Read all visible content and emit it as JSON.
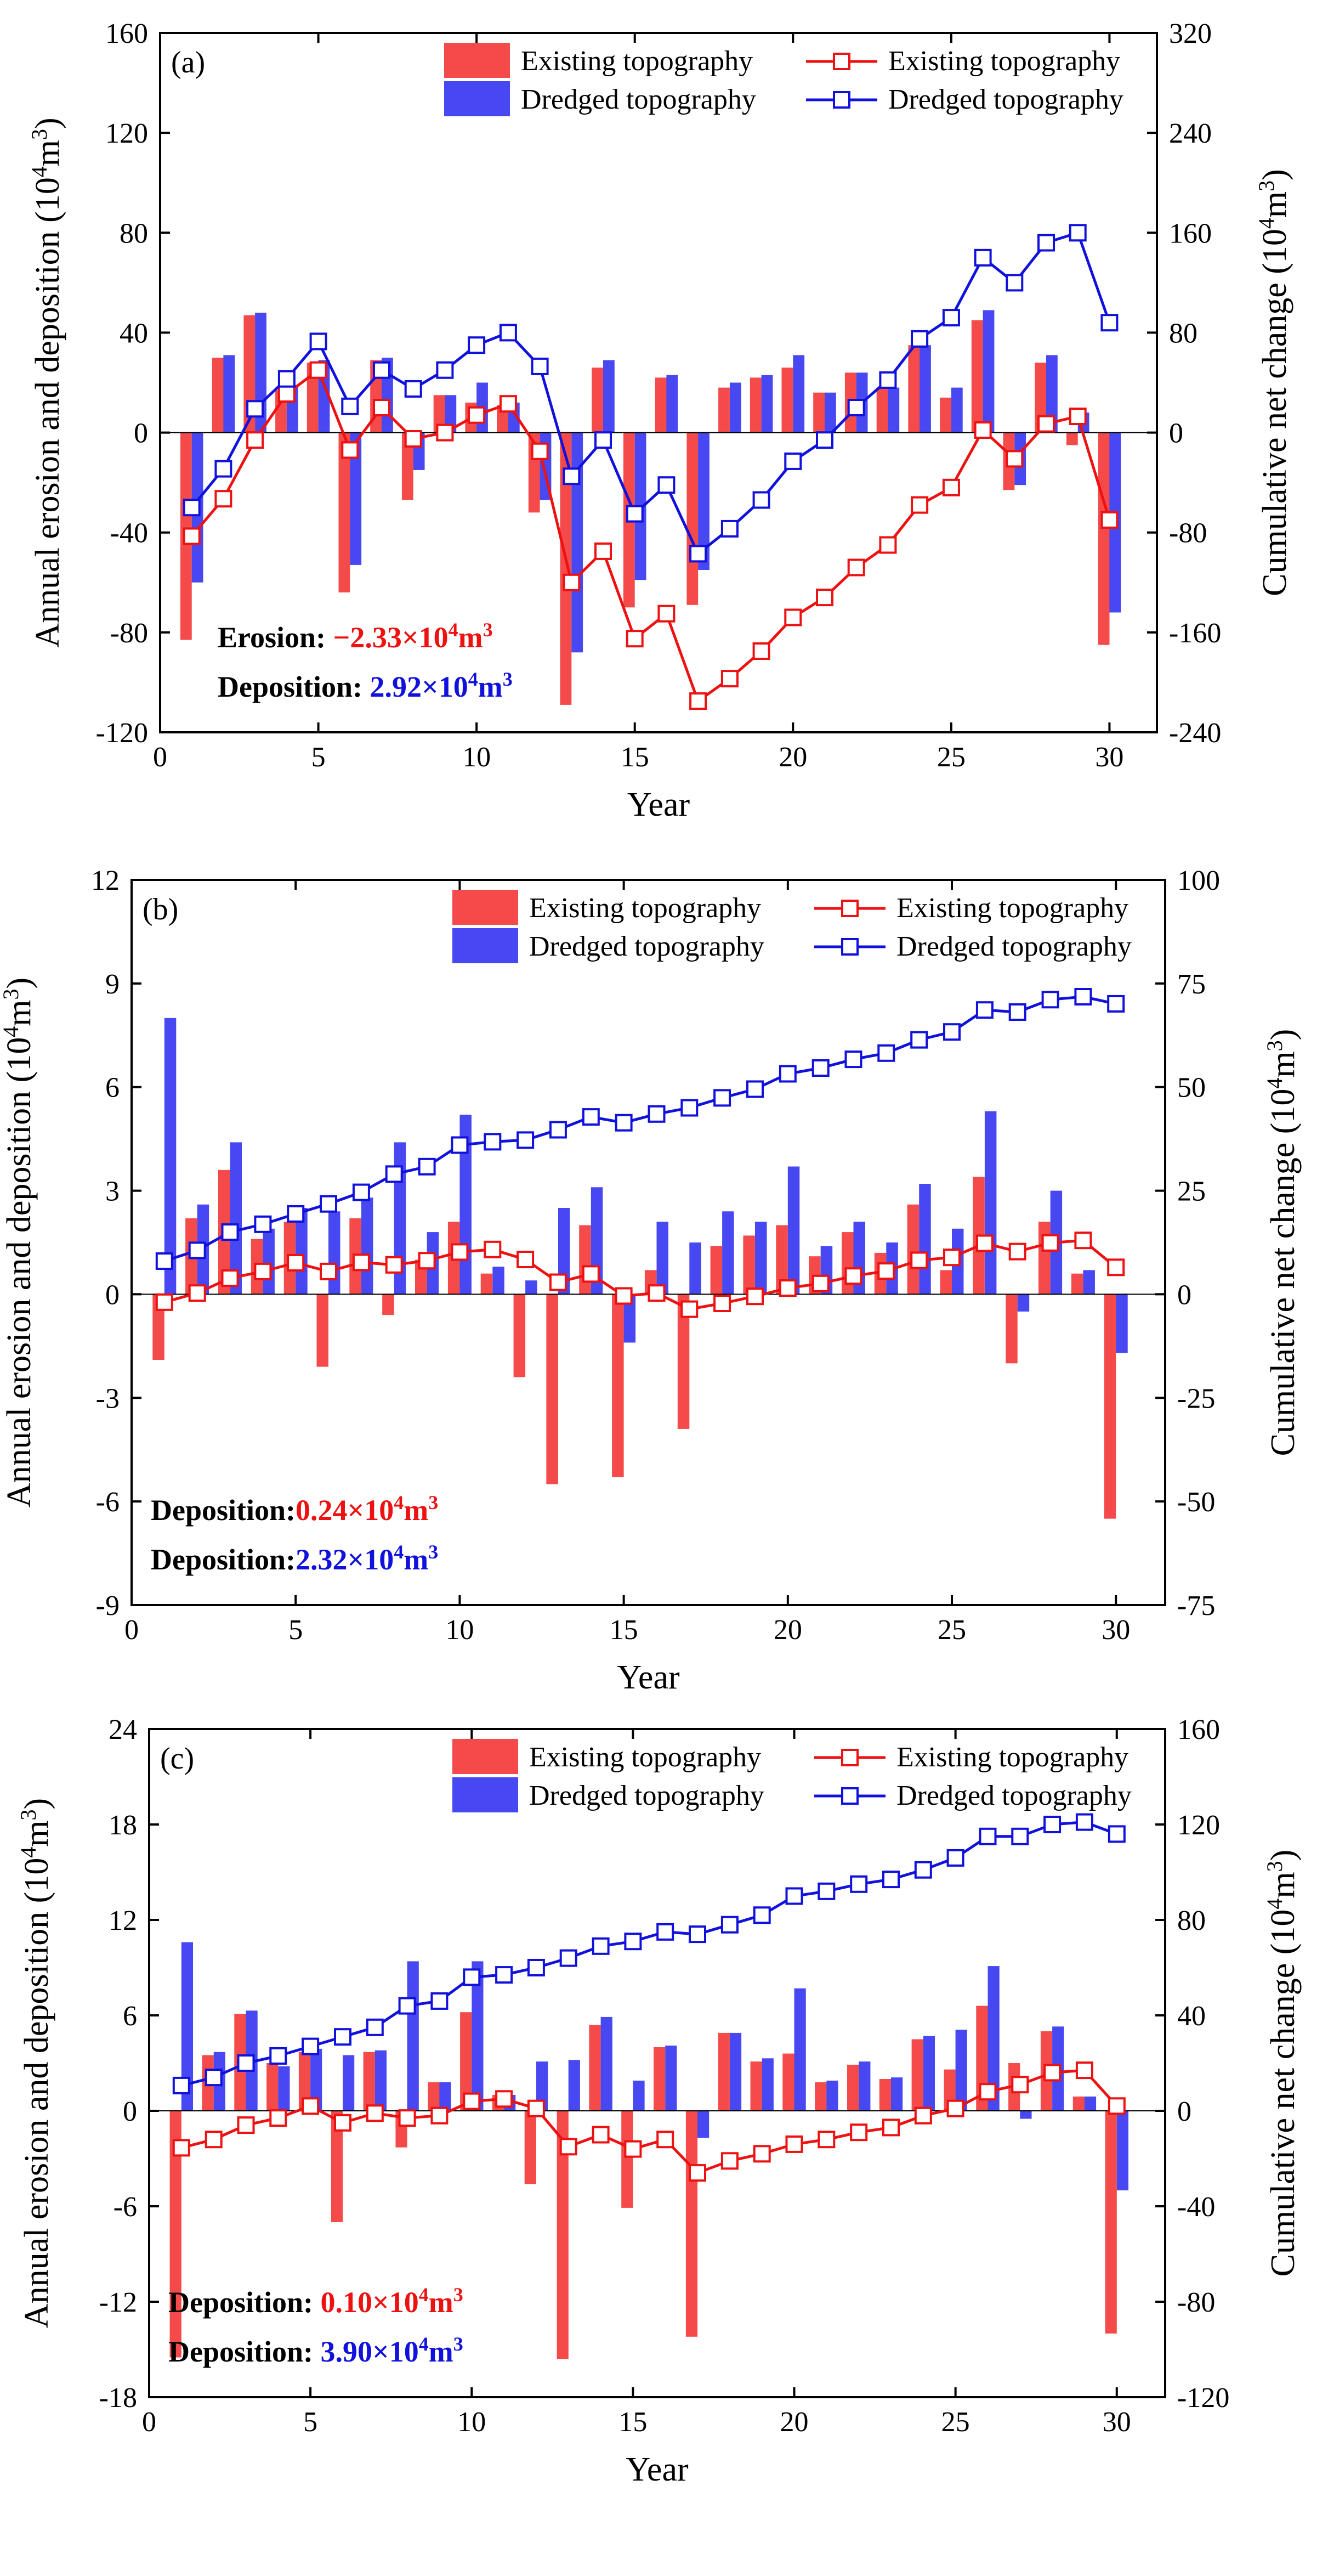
{
  "chart_data": [
    {
      "type": "bar+line",
      "panel_label": "(a)",
      "xlabel": "Year",
      "ylabel_left": "Annual erosion and deposition (10",
      "ylabel_left_sup": "4",
      "ylabel_left_unit": "m",
      "ylabel_left_sup2": "3",
      "ylabel_left_close": ")",
      "ylabel_right": "Cumulative net change (10",
      "ylabel_right_sup": "4",
      "ylabel_right_unit": "m",
      "ylabel_right_sup2": "3",
      "ylabel_right_close": ")",
      "xlim": [
        0,
        31.5
      ],
      "ylim_left": [
        -120,
        160
      ],
      "ylim_right": [
        -240,
        320
      ],
      "xticks": [
        0,
        5,
        10,
        15,
        20,
        25,
        30
      ],
      "yticks_left": [
        -120,
        -80,
        -40,
        0,
        40,
        80,
        120,
        160
      ],
      "yticks_right": [
        -240,
        -160,
        -80,
        0,
        80,
        160,
        240,
        320
      ],
      "legend": {
        "bar_existing": "Existing topography",
        "bar_dredged": "Dredged topography",
        "line_existing": "Existing topography",
        "line_dredged": "Dredged topography"
      },
      "annotations": [
        {
          "label": "Erosion: ",
          "value": "−2.33×10",
          "sup": "4",
          "unit": "m",
          "sup2": "3",
          "color": "#ee1111"
        },
        {
          "label": "Deposition: ",
          "value": "2.92×10",
          "sup": "4",
          "unit": "m",
          "sup2": "3",
          "color": "#1111dd"
        }
      ],
      "x": [
        1,
        2,
        3,
        4,
        5,
        6,
        7,
        8,
        9,
        10,
        11,
        12,
        13,
        14,
        15,
        16,
        17,
        18,
        19,
        20,
        21,
        22,
        23,
        24,
        25,
        26,
        27,
        28,
        29,
        30
      ],
      "series": [
        {
          "name": "Existing topography (annual)",
          "kind": "bar",
          "color": "#f44a4a",
          "values": [
            -83,
            30,
            47,
            17,
            28,
            -64,
            29,
            -27,
            15,
            12,
            11,
            -32,
            -109,
            26,
            -70,
            22,
            -69,
            18,
            22,
            26,
            16,
            24,
            18,
            35,
            14,
            45,
            -23,
            28,
            -5,
            -85
          ]
        },
        {
          "name": "Dredged topography (annual)",
          "kind": "bar",
          "color": "#4848f2",
          "values": [
            -60,
            31,
            48,
            19,
            29,
            -53,
            30,
            -15,
            15,
            20,
            12,
            -27,
            -88,
            29,
            -59,
            23,
            -55,
            20,
            23,
            31,
            16,
            24,
            18,
            35,
            18,
            49,
            -21,
            31,
            8,
            -72
          ]
        },
        {
          "name": "Existing topography (cumulative)",
          "kind": "line",
          "color": "#ee1111",
          "values": [
            -83,
            -53,
            -6,
            31,
            50,
            -14,
            20,
            -5,
            0,
            14,
            23,
            -15,
            -120,
            -95,
            -165,
            -145,
            -215,
            -197,
            -175,
            -148,
            -132,
            -108,
            -90,
            -58,
            -44,
            2,
            -21,
            7,
            13,
            -70
          ]
        },
        {
          "name": "Dredged topography (cumulative)",
          "kind": "line",
          "color": "#1111dd",
          "values": [
            -60,
            -29,
            19,
            43,
            73,
            21,
            50,
            35,
            50,
            70,
            80,
            53,
            -35,
            -6,
            -65,
            -42,
            -97,
            -77,
            -54,
            -23,
            -6,
            20,
            42,
            75,
            92,
            140,
            120,
            152,
            160,
            88
          ]
        }
      ]
    },
    {
      "type": "bar+line",
      "panel_label": "(b)",
      "xlabel": "Year",
      "ylabel_left": "Annual erosion and deposition (10",
      "ylabel_left_sup": "4",
      "ylabel_left_unit": "m",
      "ylabel_left_sup2": "3",
      "ylabel_left_close": ")",
      "ylabel_right": "Cumulative net change (10",
      "ylabel_right_sup": "4",
      "ylabel_right_unit": "m",
      "ylabel_right_sup2": "3",
      "ylabel_right_close": ")",
      "xlim": [
        0,
        31.5
      ],
      "ylim_left": [
        -9,
        12
      ],
      "ylim_right": [
        -75,
        100
      ],
      "xticks": [
        0,
        5,
        10,
        15,
        20,
        25,
        30
      ],
      "yticks_left": [
        -9,
        -6,
        -3,
        0,
        3,
        6,
        9,
        12
      ],
      "yticks_right": [
        -75,
        -50,
        -25,
        0,
        25,
        50,
        75,
        100
      ],
      "legend": {
        "bar_existing": "Existing topography",
        "bar_dredged": "Dredged topography",
        "line_existing": "Existing topography",
        "line_dredged": "Dredged topography"
      },
      "annotations": [
        {
          "label": "Deposition:",
          "value": "0.24×10",
          "sup": "4",
          "unit": "m",
          "sup2": "3",
          "color": "#ee1111"
        },
        {
          "label": "Deposition:",
          "value": "2.32×10",
          "sup": "4",
          "unit": "m",
          "sup2": "3",
          "color": "#1111dd"
        }
      ],
      "x": [
        1,
        2,
        3,
        4,
        5,
        6,
        7,
        8,
        9,
        10,
        11,
        12,
        13,
        14,
        15,
        16,
        17,
        18,
        19,
        20,
        21,
        22,
        23,
        24,
        25,
        26,
        27,
        28,
        29,
        30
      ],
      "series": [
        {
          "name": "Existing topography (annual)",
          "kind": "bar",
          "color": "#f44a4a",
          "values": [
            -1.9,
            2.2,
            3.6,
            1.6,
            2.1,
            -2.1,
            2.2,
            -0.6,
            1.0,
            2.1,
            0.6,
            -2.4,
            -5.5,
            2.0,
            -5.3,
            0.7,
            -3.9,
            1.4,
            1.7,
            2.0,
            1.1,
            1.8,
            1.2,
            2.6,
            0.7,
            3.4,
            -2.0,
            2.1,
            0.6,
            -6.5
          ]
        },
        {
          "name": "Dredged topography (annual)",
          "kind": "bar",
          "color": "#4848f2",
          "values": [
            8.0,
            2.6,
            4.4,
            1.9,
            2.5,
            2.4,
            2.8,
            4.4,
            1.8,
            5.2,
            0.8,
            0.4,
            2.5,
            3.1,
            -1.4,
            2.1,
            1.5,
            2.4,
            2.1,
            3.7,
            1.4,
            2.1,
            1.5,
            3.2,
            1.9,
            5.3,
            -0.5,
            3.0,
            0.7,
            -1.7
          ]
        },
        {
          "name": "Existing topography (cumulative)",
          "kind": "line",
          "color": "#ee1111",
          "values": [
            -1.9,
            0.3,
            3.9,
            5.5,
            7.6,
            5.5,
            7.7,
            7.1,
            8.1,
            10.2,
            10.8,
            8.4,
            2.9,
            4.9,
            -0.4,
            0.3,
            -3.6,
            -2.2,
            -0.5,
            1.5,
            2.6,
            4.4,
            5.6,
            8.2,
            8.9,
            12.3,
            10.3,
            12.4,
            13.0,
            6.5
          ]
        },
        {
          "name": "Dredged topography (cumulative)",
          "kind": "line",
          "color": "#1111dd",
          "values": [
            8.0,
            10.6,
            15.0,
            16.9,
            19.4,
            21.8,
            24.6,
            29.0,
            30.8,
            36.0,
            36.8,
            37.2,
            39.7,
            42.8,
            41.4,
            43.5,
            45.0,
            47.4,
            49.5,
            53.2,
            54.6,
            56.7,
            58.2,
            61.4,
            63.3,
            68.6,
            68.1,
            71.1,
            71.8,
            70.1
          ]
        }
      ]
    },
    {
      "type": "bar+line",
      "panel_label": "(c)",
      "xlabel": "Year",
      "ylabel_left": "Annual erosion and deposition (10",
      "ylabel_left_sup": "4",
      "ylabel_left_unit": "m",
      "ylabel_left_sup2": "3",
      "ylabel_left_close": ")",
      "ylabel_right": "Cumulative net change (10",
      "ylabel_right_sup": "4",
      "ylabel_right_unit": "m",
      "ylabel_right_sup2": "3",
      "ylabel_right_close": ")",
      "xlim": [
        0,
        31.5
      ],
      "ylim_left": [
        -18,
        24
      ],
      "ylim_right": [
        -120,
        160
      ],
      "xticks": [
        0,
        5,
        10,
        15,
        20,
        25,
        30
      ],
      "yticks_left": [
        -18,
        -12,
        -6,
        0,
        6,
        12,
        18,
        24
      ],
      "yticks_right": [
        -120,
        -80,
        -40,
        0,
        40,
        80,
        120,
        160
      ],
      "legend": {
        "bar_existing": "Existing topography",
        "bar_dredged": "Dredged topography",
        "line_existing": "Existing topography",
        "line_dredged": "Dredged topography"
      },
      "annotations": [
        {
          "label": "Deposition: ",
          "value": "0.10×10",
          "sup": "4",
          "unit": "m",
          "sup2": "3",
          "color": "#ee1111"
        },
        {
          "label": "Deposition: ",
          "value": "3.90×10",
          "sup": "4",
          "unit": "m",
          "sup2": "3",
          "color": "#1111dd"
        }
      ],
      "x": [
        1,
        2,
        3,
        4,
        5,
        6,
        7,
        8,
        9,
        10,
        11,
        12,
        13,
        14,
        15,
        16,
        17,
        18,
        19,
        20,
        21,
        22,
        23,
        24,
        25,
        26,
        27,
        28,
        29,
        30
      ],
      "series": [
        {
          "name": "Existing topography (annual)",
          "kind": "bar",
          "color": "#f44a4a",
          "values": [
            -15.5,
            3.5,
            6.1,
            3.0,
            3.7,
            -7.0,
            3.7,
            -2.3,
            1.8,
            6.2,
            1.0,
            -4.6,
            -15.6,
            5.4,
            -6.1,
            4.0,
            -14.2,
            4.9,
            3.1,
            3.6,
            1.8,
            2.9,
            2.0,
            4.5,
            2.6,
            6.6,
            3.0,
            5.0,
            0.9,
            -14.0
          ]
        },
        {
          "name": "Dredged topography (annual)",
          "kind": "bar",
          "color": "#4848f2",
          "values": [
            10.6,
            3.7,
            6.3,
            2.8,
            3.9,
            3.5,
            3.8,
            9.4,
            1.8,
            9.4,
            1.0,
            3.1,
            3.2,
            5.9,
            1.9,
            4.1,
            -1.7,
            4.9,
            3.3,
            7.7,
            1.9,
            3.1,
            2.1,
            4.7,
            5.1,
            9.1,
            -0.5,
            5.3,
            0.9,
            -5.0
          ]
        },
        {
          "name": "Existing topography (cumulative)",
          "kind": "line",
          "color": "#ee1111",
          "values": [
            -15.5,
            -12,
            -6,
            -3,
            2,
            -5,
            -1,
            -3,
            -2,
            4,
            5,
            1,
            -15,
            -10,
            -16,
            -12,
            -26,
            -21,
            -18,
            -14,
            -12,
            -9,
            -7,
            -2,
            1,
            8,
            11,
            16,
            17,
            2
          ]
        },
        {
          "name": "Dredged topography (cumulative)",
          "kind": "line",
          "color": "#1111dd",
          "values": [
            10.6,
            14,
            20,
            23,
            27,
            31,
            35,
            44,
            46,
            56,
            57,
            60,
            64,
            69,
            71,
            75,
            74,
            78,
            82,
            90,
            92,
            95,
            97,
            101,
            106,
            115,
            115,
            120,
            121,
            116
          ]
        }
      ]
    }
  ]
}
